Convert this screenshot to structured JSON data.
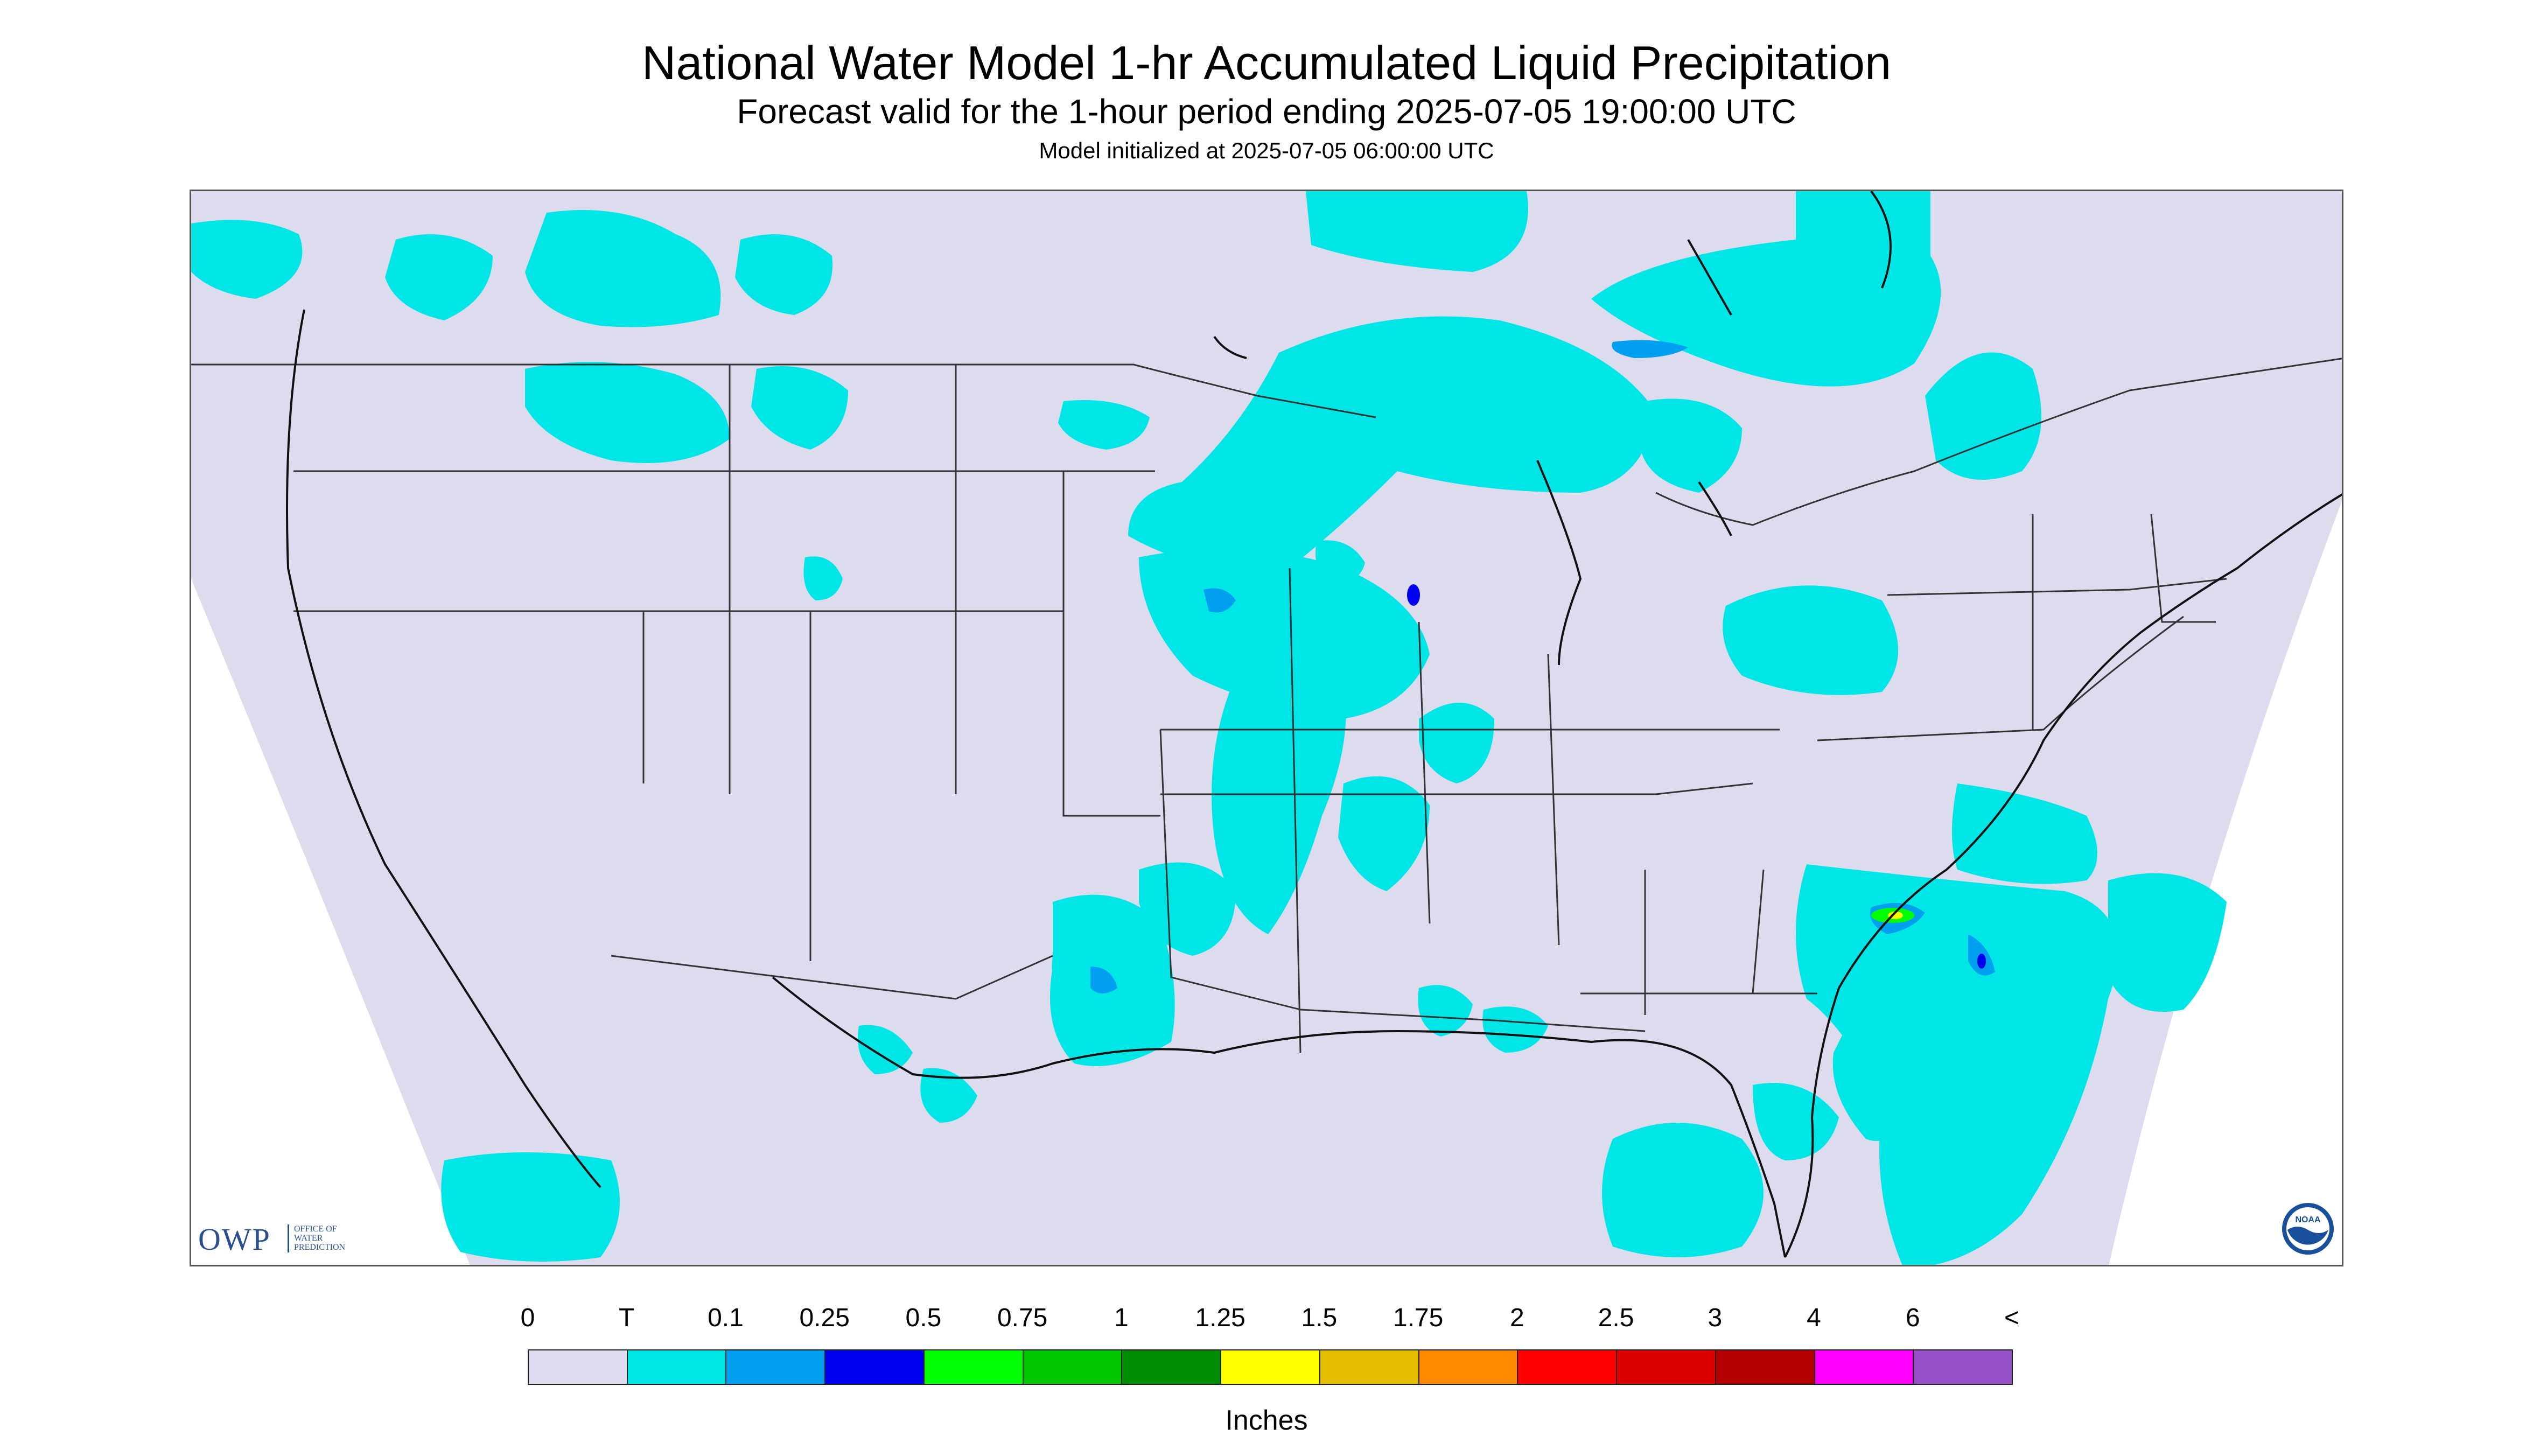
{
  "title": "National Water Model 1-hr Accumulated Liquid Precipitation",
  "subtitle": "Forecast valid for the 1-hour period ending 2025-07-05 19:00:00 UTC",
  "init_line": "Model initialized at 2025-07-05 06:00:00 UTC",
  "map": {
    "projection_outside_color": "#ffffff",
    "projection_inside_color": "#dcdcee",
    "border_color": "#333333",
    "layers": [
      "state-boundaries",
      "country-boundaries",
      "coastlines",
      "precipitation-field"
    ]
  },
  "logos": {
    "owp": {
      "abbr": "OWP",
      "line1": "OFFICE OF",
      "line2": "WATER",
      "line3": "PREDICTION"
    },
    "noaa": {
      "text": "NOAA",
      "icon": "noaa-icon"
    }
  },
  "legend": {
    "labels": [
      "0",
      "T",
      "0.1",
      "0.25",
      "0.5",
      "0.75",
      "1",
      "1.25",
      "1.5",
      "1.75",
      "2",
      "2.5",
      "3",
      "4",
      "6",
      "<"
    ],
    "colors": [
      "#dcdcee",
      "#00e6e6",
      "#009ff0",
      "#0000f0",
      "#00ff00",
      "#00c800",
      "#008c00",
      "#ffff00",
      "#e6be00",
      "#ff8c00",
      "#ff0000",
      "#dc0000",
      "#b40000",
      "#ff00ff",
      "#9650c8"
    ],
    "units": "Inches"
  }
}
